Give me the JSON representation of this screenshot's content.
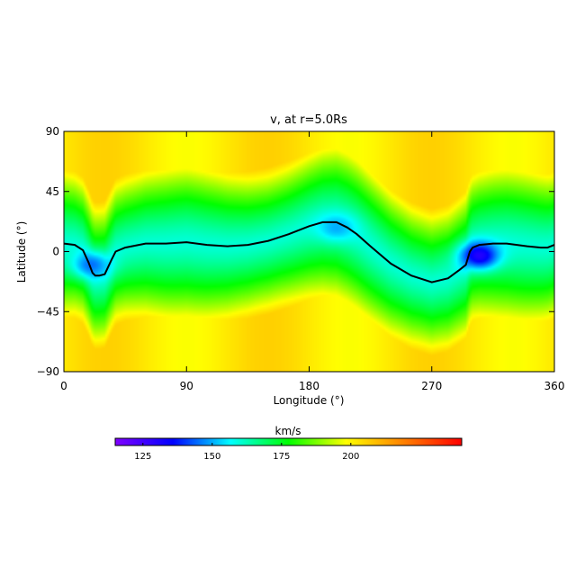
{
  "chart_data": {
    "type": "heatmap",
    "title": "v, at r=5.0Rs",
    "xlabel": "Longitude (°)",
    "ylabel": "Latitude (°)",
    "xlim": [
      0,
      360
    ],
    "ylim": [
      -90,
      90
    ],
    "x_ticks": [
      0,
      90,
      180,
      270,
      360
    ],
    "y_ticks": [
      -90,
      -45,
      0,
      45,
      90
    ],
    "x_tick_labels": [
      "0",
      "90",
      "180",
      "270",
      "360"
    ],
    "y_tick_labels": [
      "−90",
      "−45",
      "0",
      "45",
      "90"
    ],
    "grid": false,
    "colorbar": {
      "label": "km/s",
      "range": [
        115,
        240
      ],
      "ticks": [
        125,
        150,
        175,
        200
      ],
      "tick_labels": [
        "125",
        "150",
        "175",
        "200"
      ],
      "colors": [
        "#8000ff",
        "#0000ff",
        "#00ffff",
        "#00ff00",
        "#ffff00",
        "#ff8000",
        "#ff0000"
      ]
    },
    "current_sheet": {
      "lon": [
        0,
        8,
        14,
        18,
        21,
        23,
        26,
        30,
        35,
        38,
        45,
        60,
        75,
        90,
        105,
        120,
        135,
        150,
        165,
        180,
        190,
        200,
        208,
        215,
        225,
        240,
        255,
        270,
        282,
        290,
        295,
        298,
        300,
        305,
        315,
        325,
        340,
        350,
        355,
        360
      ],
      "lat": [
        6,
        5,
        1,
        -8,
        -16,
        -18,
        -18,
        -17,
        -6,
        0,
        3,
        6,
        6,
        7,
        5,
        4,
        5,
        8,
        13,
        19,
        22,
        22,
        18,
        13,
        4,
        -9,
        -18,
        -23,
        -20,
        -14,
        -10,
        0,
        3,
        5,
        6,
        6,
        4,
        3,
        3,
        5
      ]
    },
    "speed_field": {
      "polar_speed": 202,
      "midlatitude_speed": 180,
      "sheet_speed": 160,
      "low_speed_regions": [
        {
          "lon": 20,
          "lat": -10,
          "speed": 145
        },
        {
          "lon": 200,
          "lat": 18,
          "speed": 150
        },
        {
          "lon": 305,
          "lat": -3,
          "speed": 130
        }
      ]
    }
  }
}
